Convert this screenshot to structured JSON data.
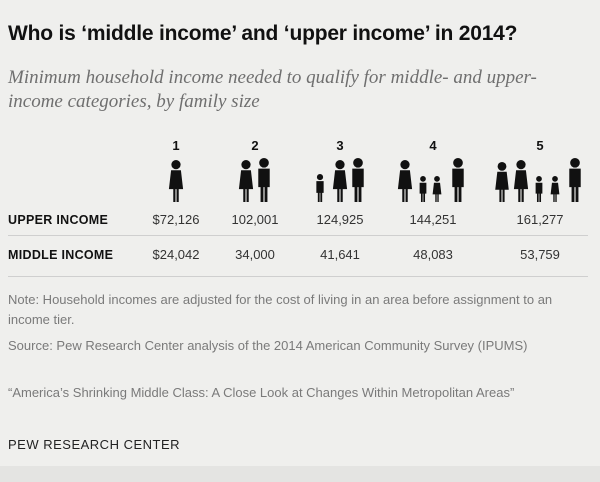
{
  "title": "Who is ‘middle income’ and ‘upper income’ in 2014?",
  "subtitle": "Minimum household income needed to qualify for middle- and upper-income categories, by family size",
  "chart_data": {
    "type": "table",
    "columns": [
      "1",
      "2",
      "3",
      "4",
      "5"
    ],
    "rows": [
      {
        "label": "UPPER INCOME",
        "values": [
          "$72,126",
          "102,001",
          "124,925",
          "144,251",
          "161,277"
        ]
      },
      {
        "label": "MIDDLE INCOME",
        "values": [
          "$24,042",
          "34,000",
          "41,641",
          "48,083",
          "53,759"
        ]
      }
    ],
    "people_icons_per_column": [
      1,
      2,
      3,
      4,
      5
    ]
  },
  "notes": [
    "Note: Household incomes are adjusted for the cost of living in an area before assignment to an income tier.",
    "Source: Pew Research Center analysis of the 2014 American Community Survey (IPUMS)",
    "“America’s Shrinking Middle Class: A Close Look at Changes Within Metropolitan Areas”"
  ],
  "logo": "PEW RESEARCH CENTER"
}
